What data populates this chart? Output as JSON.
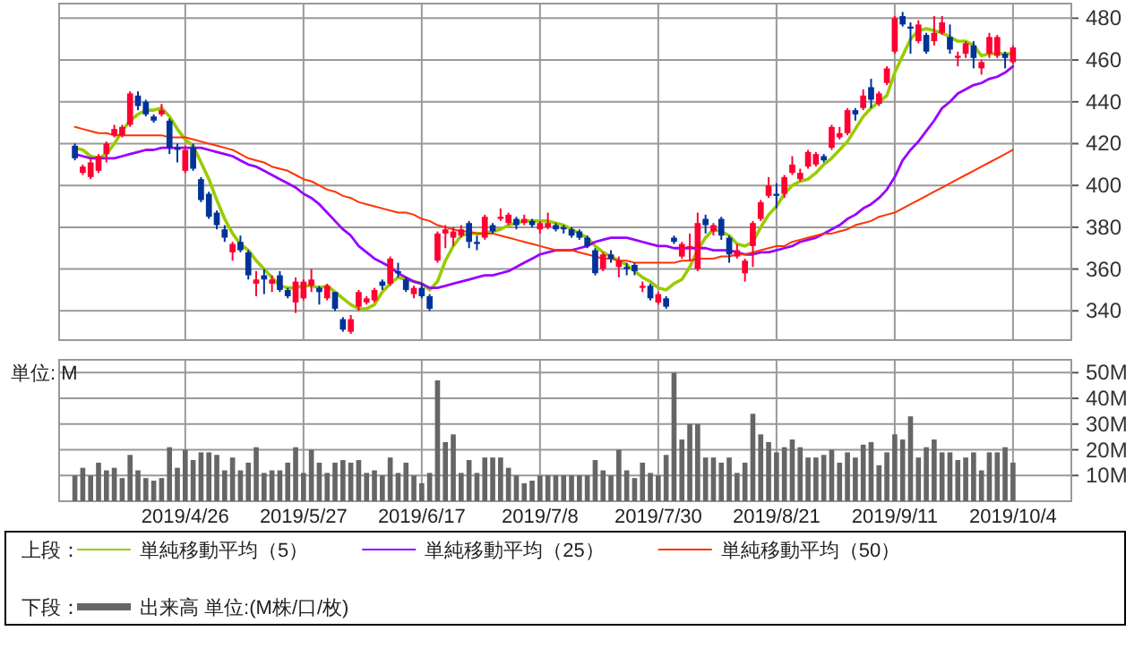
{
  "chart_data": [
    {
      "type": "candlestick",
      "ylim": [
        326,
        487
      ],
      "yticks": [
        340,
        360,
        380,
        400,
        420,
        440,
        460,
        480
      ],
      "grid": true,
      "tick_labels": "y",
      "legend": "bottom",
      "legend_title": "上段：",
      "categories": [
        null,
        null,
        null,
        null,
        null,
        null,
        null,
        null,
        null,
        null,
        null,
        null,
        null,
        null,
        "2019/4/26",
        null,
        null,
        null,
        null,
        null,
        null,
        null,
        null,
        null,
        null,
        null,
        null,
        null,
        null,
        "2019/5/27",
        null,
        null,
        null,
        null,
        null,
        null,
        null,
        null,
        null,
        null,
        null,
        null,
        null,
        null,
        "2019/6/17",
        null,
        null,
        null,
        null,
        null,
        null,
        null,
        null,
        null,
        null,
        null,
        null,
        null,
        null,
        "2019/7/8",
        null,
        null,
        null,
        null,
        null,
        null,
        null,
        null,
        null,
        null,
        null,
        null,
        null,
        null,
        "2019/7/30",
        null,
        null,
        null,
        null,
        null,
        null,
        null,
        null,
        null,
        null,
        null,
        null,
        null,
        null,
        "2019/8/21",
        null,
        null,
        null,
        null,
        null,
        null,
        null,
        null,
        null,
        null,
        null,
        null,
        null,
        null,
        "2019/9/11",
        null,
        null,
        null,
        null,
        null,
        null,
        null,
        null,
        null,
        null,
        null,
        null,
        null,
        null,
        "2019/10/4"
      ],
      "ohlc": [
        [
          419,
          420,
          412,
          413
        ],
        [
          406,
          410,
          405,
          409
        ],
        [
          404,
          413,
          403,
          411
        ],
        [
          407,
          415,
          406,
          414
        ],
        [
          415,
          421,
          411,
          420
        ],
        [
          424,
          429,
          423,
          427
        ],
        [
          424,
          429,
          423,
          428
        ],
        [
          429,
          445,
          428,
          444
        ],
        [
          443,
          445,
          436,
          438
        ],
        [
          440,
          441,
          433,
          434
        ],
        [
          433,
          434,
          430,
          431
        ],
        [
          434,
          439,
          433,
          436
        ],
        [
          431,
          432,
          415,
          418
        ],
        [
          418,
          420,
          411,
          417
        ],
        [
          407,
          419,
          406,
          417
        ],
        [
          418,
          420,
          407,
          408
        ],
        [
          403,
          404,
          392,
          393
        ],
        [
          396,
          397,
          384,
          385
        ],
        [
          387,
          388,
          379,
          381
        ],
        [
          379,
          381,
          373,
          375
        ],
        [
          368,
          373,
          364,
          372
        ],
        [
          373,
          376,
          368,
          369
        ],
        [
          368,
          369,
          355,
          357
        ],
        [
          353,
          359,
          347,
          355
        ],
        [
          357,
          360,
          348,
          355
        ],
        [
          353,
          357,
          349,
          355
        ],
        [
          357,
          359,
          349,
          350
        ],
        [
          350,
          351,
          346,
          347
        ],
        [
          344,
          356,
          339,
          354
        ],
        [
          346,
          355,
          345,
          354
        ],
        [
          352,
          360,
          349,
          355
        ],
        [
          351,
          352,
          343,
          349
        ],
        [
          346,
          353,
          345,
          352
        ],
        [
          349,
          349,
          340,
          341
        ],
        [
          336,
          337,
          330,
          331
        ],
        [
          330,
          338,
          329,
          336
        ],
        [
          342,
          350,
          340,
          349
        ],
        [
          344,
          347,
          343,
          346
        ],
        [
          345,
          351,
          344,
          350
        ],
        [
          354,
          355,
          350,
          352
        ],
        [
          353,
          366,
          352,
          365
        ],
        [
          359,
          363,
          356,
          358
        ],
        [
          355,
          356,
          349,
          350
        ],
        [
          348,
          352,
          346,
          351
        ],
        [
          351,
          353,
          346,
          347
        ],
        [
          347,
          348,
          340,
          341
        ],
        [
          364,
          378,
          363,
          377
        ],
        [
          377,
          381,
          370,
          379
        ],
        [
          375,
          380,
          371,
          378
        ],
        [
          376,
          381,
          375,
          379
        ],
        [
          382,
          383,
          370,
          373
        ],
        [
          373,
          376,
          369,
          372
        ],
        [
          375,
          386,
          374,
          385
        ],
        [
          381,
          382,
          377,
          378
        ],
        [
          384,
          389,
          383,
          385
        ],
        [
          382,
          387,
          381,
          386
        ],
        [
          384,
          385,
          379,
          381
        ],
        [
          382,
          386,
          381,
          384
        ],
        [
          383,
          384,
          380,
          381
        ],
        [
          379,
          383,
          377,
          382
        ],
        [
          380,
          387,
          379,
          382
        ],
        [
          381,
          382,
          378,
          379
        ],
        [
          380,
          381,
          377,
          379
        ],
        [
          379,
          380,
          375,
          376
        ],
        [
          378,
          379,
          374,
          375
        ],
        [
          375,
          376,
          370,
          371
        ],
        [
          369,
          370,
          357,
          358
        ],
        [
          360,
          368,
          359,
          367
        ],
        [
          367,
          369,
          363,
          365
        ],
        [
          361,
          366,
          356,
          364
        ],
        [
          361,
          363,
          357,
          360
        ],
        [
          362,
          363,
          357,
          359
        ],
        [
          351,
          354,
          349,
          352
        ],
        [
          352,
          353,
          345,
          346
        ],
        [
          344,
          349,
          343,
          348
        ],
        [
          346,
          347,
          341,
          342
        ],
        [
          375,
          376,
          372,
          373
        ],
        [
          366,
          373,
          365,
          372
        ],
        [
          370,
          377,
          364,
          371
        ],
        [
          360,
          387,
          359,
          382
        ],
        [
          384,
          386,
          377,
          381
        ],
        [
          378,
          382,
          376,
          381
        ],
        [
          384,
          385,
          374,
          376
        ],
        [
          375,
          376,
          363,
          367
        ],
        [
          366,
          372,
          365,
          369
        ],
        [
          358,
          365,
          354,
          364
        ],
        [
          371,
          383,
          361,
          382
        ],
        [
          384,
          393,
          383,
          392
        ],
        [
          395,
          404,
          394,
          400
        ],
        [
          396,
          401,
          389,
          395
        ],
        [
          396,
          405,
          394,
          404
        ],
        [
          406,
          414,
          405,
          410
        ],
        [
          403,
          408,
          402,
          406
        ],
        [
          409,
          417,
          408,
          416
        ],
        [
          410,
          416,
          409,
          415
        ],
        [
          414,
          415,
          411,
          412
        ],
        [
          418,
          429,
          417,
          428
        ],
        [
          423,
          428,
          422,
          425
        ],
        [
          425,
          437,
          424,
          436
        ],
        [
          436,
          437,
          431,
          434
        ],
        [
          437,
          446,
          436,
          443
        ],
        [
          447,
          451,
          437,
          441
        ],
        [
          439,
          445,
          438,
          444
        ],
        [
          449,
          457,
          448,
          456
        ],
        [
          464,
          481,
          463,
          480
        ],
        [
          481,
          483,
          476,
          477
        ],
        [
          476,
          478,
          463,
          475
        ],
        [
          469,
          479,
          468,
          477
        ],
        [
          472,
          473,
          463,
          464
        ],
        [
          469,
          481,
          467,
          473
        ],
        [
          473,
          481,
          472,
          478
        ],
        [
          471,
          477,
          463,
          465
        ],
        [
          461,
          464,
          457,
          462
        ],
        [
          463,
          469,
          461,
          468
        ],
        [
          467,
          469,
          456,
          461
        ],
        [
          456,
          460,
          453,
          459
        ],
        [
          463,
          473,
          461,
          471
        ],
        [
          462,
          472,
          461,
          471
        ],
        [
          463,
          464,
          456,
          461
        ],
        [
          459,
          467,
          458,
          466
        ]
      ],
      "series": [
        {
          "name": "単純移動平均（5）",
          "type": "line",
          "color": "#99cc00",
          "values": [
            418,
            417,
            414,
            413,
            415,
            420,
            426,
            431,
            434,
            436,
            436,
            437,
            433,
            427,
            422,
            419,
            411,
            403,
            393,
            384,
            377,
            372,
            369,
            364,
            360,
            356,
            352,
            351,
            351,
            352,
            352,
            351,
            352,
            349,
            346,
            343,
            341,
            341,
            343,
            349,
            353,
            356,
            355,
            354,
            353,
            350,
            354,
            364,
            371,
            376,
            377,
            377,
            377,
            378,
            379,
            381,
            382,
            383,
            383,
            383,
            383,
            382,
            381,
            379,
            377,
            375,
            371,
            368,
            366,
            364,
            362,
            359,
            356,
            354,
            351,
            350,
            353,
            355,
            361,
            369,
            375,
            379,
            378,
            376,
            372,
            371,
            373,
            380,
            386,
            390,
            396,
            400,
            402,
            403,
            406,
            410,
            413,
            417,
            421,
            427,
            433,
            437,
            440,
            443,
            454,
            462,
            470,
            474,
            475,
            474,
            473,
            471,
            469,
            469,
            467,
            462,
            463,
            463,
            463,
            463
          ]
        },
        {
          "name": "単純移動平均（25）",
          "type": "line",
          "color": "#9900ff",
          "values": [
            415,
            414,
            413,
            413,
            413,
            413,
            414,
            415,
            416,
            417,
            417,
            418,
            418,
            418,
            418,
            418,
            418,
            417,
            416,
            415,
            414,
            412,
            410,
            409,
            407,
            405,
            403,
            401,
            399,
            396,
            394,
            391,
            387,
            383,
            379,
            376,
            371,
            368,
            365,
            363,
            361,
            358,
            356,
            354,
            353,
            351,
            351,
            352,
            353,
            354,
            355,
            356,
            357,
            357,
            358,
            359,
            361,
            363,
            365,
            367,
            368,
            369,
            369,
            369,
            370,
            371,
            373,
            374,
            375,
            375,
            375,
            374,
            373,
            372,
            371,
            371,
            370,
            370,
            370,
            370,
            370,
            369,
            369,
            369,
            368,
            367,
            367,
            368,
            368,
            369,
            370,
            371,
            373,
            374,
            375,
            377,
            379,
            381,
            384,
            386,
            389,
            391,
            394,
            398,
            404,
            412,
            417,
            421,
            426,
            431,
            437,
            440,
            444,
            446,
            448,
            449,
            451,
            452,
            454,
            457
          ]
        },
        {
          "name": "単純移動平均（50）",
          "type": "line",
          "color": "#ff3300",
          "values": [
            428,
            427,
            426,
            425,
            425,
            424,
            424,
            424,
            424,
            424,
            424,
            424,
            423,
            423,
            423,
            422,
            421,
            420,
            419,
            418,
            417,
            415,
            413,
            412,
            411,
            409,
            408,
            407,
            405,
            403,
            402,
            400,
            398,
            397,
            395,
            394,
            392,
            391,
            390,
            389,
            388,
            387,
            387,
            386,
            384,
            383,
            381,
            380,
            379,
            378,
            378,
            377,
            377,
            377,
            376,
            375,
            374,
            373,
            372,
            371,
            370,
            369,
            369,
            369,
            368,
            367,
            366,
            365,
            365,
            364,
            364,
            363,
            363,
            363,
            363,
            363,
            363,
            364,
            364,
            365,
            365,
            365,
            366,
            366,
            367,
            367,
            368,
            369,
            370,
            371,
            371,
            373,
            374,
            375,
            376,
            377,
            377,
            378,
            379,
            381,
            382,
            383,
            385,
            386,
            387,
            389,
            391,
            393,
            395,
            397,
            399,
            401,
            403,
            405,
            407,
            409,
            411,
            413,
            415,
            417
          ]
        }
      ]
    },
    {
      "type": "bar",
      "ylim": [
        0,
        55
      ],
      "yticks": [
        {
          "value": 10,
          "label": "10M"
        },
        {
          "value": 20,
          "label": "20M"
        },
        {
          "value": 30,
          "label": "30M"
        },
        {
          "value": 40,
          "label": "40M"
        },
        {
          "value": 50,
          "label": "50M"
        }
      ],
      "grid": true,
      "legend": "bottom",
      "legend_title": "下段：",
      "ylabel": "単位: M",
      "categories": [
        null,
        null,
        null,
        null,
        null,
        null,
        null,
        null,
        null,
        null,
        null,
        null,
        null,
        null,
        "2019/4/26",
        null,
        null,
        null,
        null,
        null,
        null,
        null,
        null,
        null,
        null,
        null,
        null,
        null,
        null,
        "2019/5/27",
        null,
        null,
        null,
        null,
        null,
        null,
        null,
        null,
        null,
        null,
        null,
        null,
        null,
        null,
        "2019/6/17",
        null,
        null,
        null,
        null,
        null,
        null,
        null,
        null,
        null,
        null,
        null,
        null,
        null,
        null,
        "2019/7/8",
        null,
        null,
        null,
        null,
        null,
        null,
        null,
        null,
        null,
        null,
        null,
        null,
        null,
        null,
        "2019/7/30",
        null,
        null,
        null,
        null,
        null,
        null,
        null,
        null,
        null,
        null,
        null,
        null,
        null,
        null,
        "2019/8/21",
        null,
        null,
        null,
        null,
        null,
        null,
        null,
        null,
        null,
        null,
        null,
        null,
        null,
        null,
        "2019/9/11",
        null,
        null,
        null,
        null,
        null,
        null,
        null,
        null,
        null,
        null,
        null,
        null,
        null,
        null,
        "2019/10/4"
      ],
      "series": [
        {
          "name": "出来高 単位:(M株/口/枚)",
          "color": "#666666",
          "values": [
            10,
            13,
            10,
            15,
            12,
            13,
            9,
            18,
            12,
            9,
            8,
            9,
            21,
            13,
            20,
            16,
            19,
            19,
            18,
            12,
            17,
            12,
            15,
            21,
            11,
            12,
            12,
            15,
            21,
            11,
            20,
            15,
            11,
            15,
            16,
            15,
            16,
            11,
            12,
            10,
            17,
            11,
            15,
            10,
            7,
            11,
            47,
            23,
            26,
            11,
            16,
            11,
            17,
            17,
            17,
            13,
            10,
            7,
            8,
            10,
            10,
            10,
            10,
            10,
            10,
            10,
            16,
            12,
            10,
            20,
            12,
            9,
            15,
            11,
            10,
            18,
            50,
            24,
            30,
            30,
            17,
            17,
            15,
            17,
            11,
            15,
            34,
            26,
            23,
            19,
            21,
            24,
            21,
            17,
            17,
            18,
            20,
            15,
            19,
            17,
            22,
            23,
            14,
            19,
            26,
            24,
            33,
            17,
            21,
            24,
            19,
            19,
            16,
            17,
            19,
            12,
            19,
            19,
            21,
            15
          ]
        }
      ]
    }
  ]
}
